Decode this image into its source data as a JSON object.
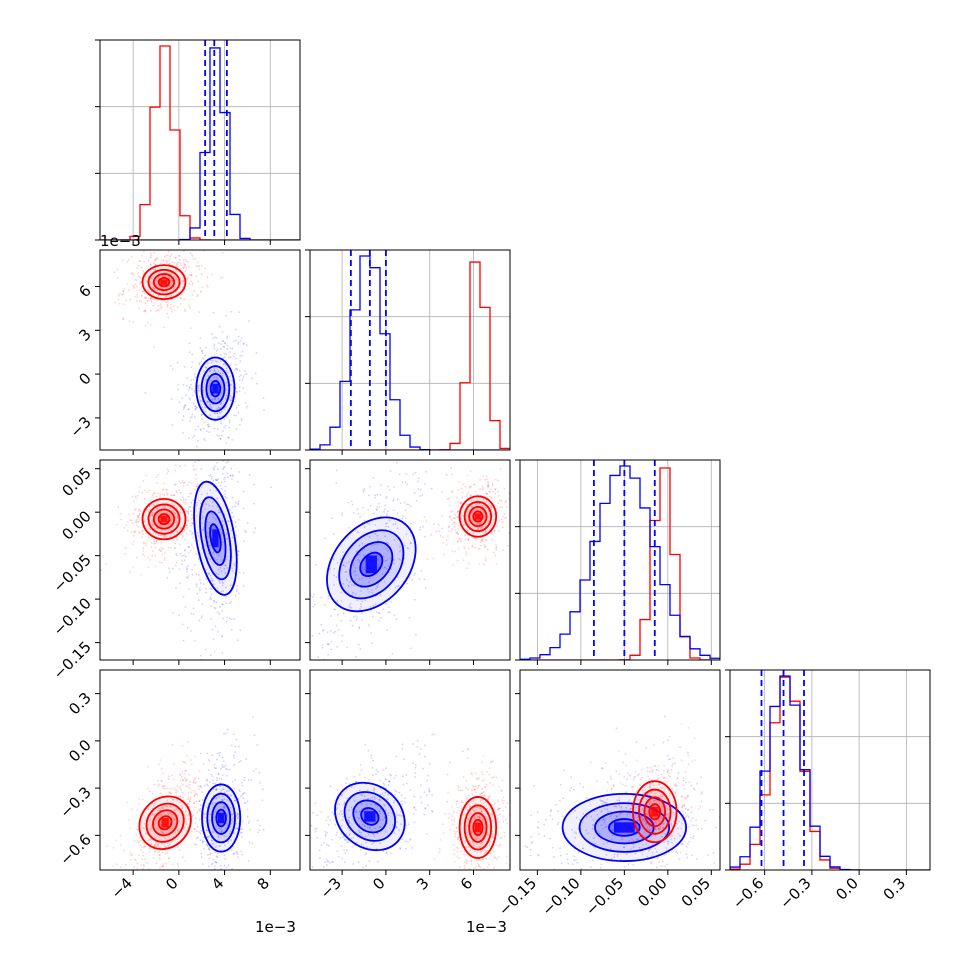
{
  "chart_data": {
    "type": "corner",
    "parameters": [
      {
        "ticks": [
          "−4",
          "0",
          "4",
          "8"
        ],
        "tick_values": [
          -0.004,
          0.0,
          0.004,
          0.008
        ],
        "range": [
          -0.0069,
          0.0106
        ],
        "offset_label": "1e−3"
      },
      {
        "ticks": [
          "−3",
          "0",
          "3",
          "6"
        ],
        "tick_values": [
          -0.003,
          0.0,
          0.003,
          0.006
        ],
        "range": [
          -0.0052,
          0.0085
        ],
        "offset_label": "1e−3"
      },
      {
        "ticks": [
          "−0.15",
          "−0.10",
          "−0.05",
          "0.00",
          "0.05"
        ],
        "tick_values": [
          -0.15,
          -0.1,
          -0.05,
          0.0,
          0.05
        ],
        "range": [
          -0.17,
          0.06
        ]
      },
      {
        "ticks": [
          "−0.6",
          "−0.3",
          "0.0",
          "0.3"
        ],
        "tick_values": [
          -0.6,
          -0.3,
          0.0,
          0.3
        ],
        "range": [
          -0.82,
          0.45
        ]
      }
    ],
    "series": [
      {
        "color": "#0000ff",
        "means": [
          0.0033,
          -0.0012,
          -0.05,
          -0.47
        ],
        "sigmas": [
          0.0008,
          0.0011,
          0.034,
          0.11
        ],
        "quantiles": [
          [
            0.0023,
            0.0031,
            0.0042
          ],
          [
            -0.0024,
            -0.0011,
            0.0
          ],
          [
            -0.085,
            -0.05,
            -0.015
          ],
          [
            -0.62,
            -0.48,
            -0.35
          ]
        ],
        "centers": [
          [
            0.0032,
            -0.001
          ],
          [
            0.0032,
            -0.03
          ],
          [
            -0.001,
            -0.06
          ],
          [
            0.0037,
            -0.49
          ],
          [
            -0.0011,
            -0.48
          ],
          [
            -0.05,
            -0.55
          ]
        ]
      },
      {
        "color": "#ff0000",
        "means": [
          -0.0013,
          0.0063,
          -0.005,
          -0.46
        ],
        "sigmas": [
          0.0009,
          0.0006,
          0.012,
          0.1
        ],
        "centers": [
          [
            -0.0013,
            0.0063
          ],
          [
            -0.0013,
            -0.008
          ],
          [
            0.0063,
            -0.005
          ],
          [
            -0.0012,
            -0.52
          ],
          [
            0.0063,
            -0.55
          ],
          [
            -0.015,
            -0.45
          ]
        ]
      }
    ],
    "title": "",
    "xlabel": "",
    "ylabel": "",
    "grid": true
  },
  "colors": {
    "series_a": "#0000ff",
    "series_b": "#ff0000"
  }
}
